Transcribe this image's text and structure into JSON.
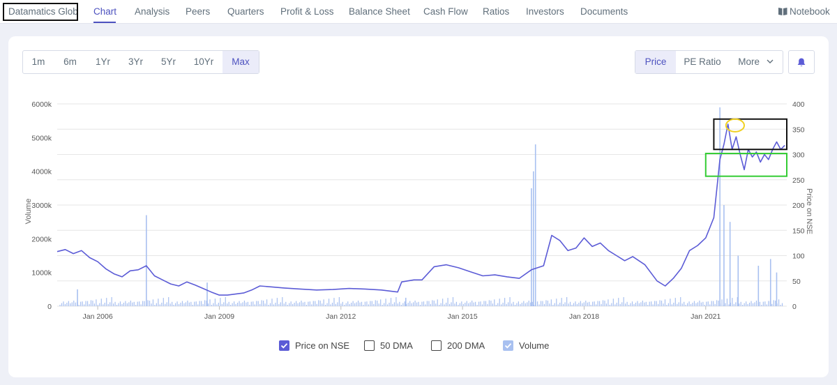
{
  "company_name": "Datamatics Glob.",
  "nav": {
    "items": [
      "Chart",
      "Analysis",
      "Peers",
      "Quarters",
      "Profit & Loss",
      "Balance Sheet",
      "Cash Flow",
      "Ratios",
      "Investors",
      "Documents"
    ],
    "active": "Chart",
    "notebook": "Notebook"
  },
  "ranges": {
    "items": [
      "1m",
      "6m",
      "1Yr",
      "3Yr",
      "5Yr",
      "10Yr",
      "Max"
    ],
    "active": "Max"
  },
  "metrics": {
    "price": "Price",
    "pe_ratio": "PE Ratio",
    "more": "More"
  },
  "icons": {
    "notebook": "book-icon",
    "more": "chevron-down-icon",
    "alert": "bell-icon"
  },
  "colors": {
    "accent": "#4c51bf",
    "price_line": "#5b5bd6",
    "volume": "#a8c0f0",
    "annotation_black": "#111111",
    "annotation_green": "#33cc33",
    "annotation_yellow": "#f0d020"
  },
  "legend": {
    "price": "Price on NSE",
    "dma50": "50 DMA",
    "dma200": "200 DMA",
    "volume": "Volume"
  },
  "chart_data": {
    "type": "line",
    "y_left": {
      "label": "Volume",
      "ticks": [
        "0",
        "1000k",
        "2000k",
        "3000k",
        "4000k",
        "5000k",
        "6000k"
      ],
      "range": [
        0,
        6000000
      ]
    },
    "y_right": {
      "label": "Price on NSE",
      "ticks": [
        "0",
        "50",
        "100",
        "150",
        "200",
        "250",
        "300",
        "350",
        "400"
      ],
      "range": [
        0,
        400
      ]
    },
    "x_ticks": [
      "Jan 2006",
      "Jan 2009",
      "Jan 2012",
      "Jan 2015",
      "Jan 2018",
      "Jan 2021"
    ],
    "x_range": [
      2005.0,
      2023.0
    ],
    "grid": true,
    "series": [
      {
        "name": "Price on NSE",
        "x": [
          2005.0,
          2005.2,
          2005.4,
          2005.6,
          2005.8,
          2006.0,
          2006.2,
          2006.4,
          2006.6,
          2006.8,
          2007.0,
          2007.2,
          2007.4,
          2007.6,
          2007.8,
          2008.0,
          2008.2,
          2008.4,
          2008.6,
          2008.8,
          2009.0,
          2009.2,
          2009.4,
          2009.6,
          2009.8,
          2010.0,
          2010.3,
          2010.6,
          2011.0,
          2011.4,
          2011.8,
          2012.2,
          2012.6,
          2013.0,
          2013.4,
          2013.5,
          2013.8,
          2014.0,
          2014.3,
          2014.6,
          2014.9,
          2015.2,
          2015.5,
          2015.8,
          2016.1,
          2016.4,
          2016.7,
          2017.0,
          2017.2,
          2017.4,
          2017.6,
          2017.8,
          2018.0,
          2018.2,
          2018.4,
          2018.6,
          2018.8,
          2019.0,
          2019.2,
          2019.5,
          2019.8,
          2020.0,
          2020.2,
          2020.4,
          2020.6,
          2020.8,
          2021.0,
          2021.2,
          2021.35,
          2021.45,
          2021.55,
          2021.65,
          2021.75,
          2021.85,
          2021.95,
          2022.05,
          2022.15,
          2022.25,
          2022.35,
          2022.45,
          2022.55,
          2022.65,
          2022.75,
          2022.85,
          2022.95
        ],
        "values": [
          108,
          112,
          104,
          110,
          96,
          88,
          74,
          64,
          58,
          70,
          72,
          80,
          60,
          52,
          44,
          40,
          48,
          42,
          35,
          28,
          22,
          22,
          24,
          26,
          32,
          40,
          38,
          36,
          34,
          32,
          33,
          35,
          34,
          32,
          28,
          48,
          52,
          52,
          78,
          82,
          76,
          68,
          60,
          62,
          58,
          55,
          72,
          80,
          140,
          130,
          110,
          115,
          135,
          118,
          125,
          110,
          100,
          90,
          98,
          82,
          50,
          40,
          55,
          75,
          110,
          120,
          135,
          175,
          290,
          320,
          360,
          310,
          335,
          300,
          270,
          310,
          295,
          305,
          285,
          300,
          290,
          310,
          325,
          310,
          318
        ]
      },
      {
        "name": "Volume",
        "x": [
          2005.5,
          2007.2,
          2008.7,
          2013.6,
          2016.7,
          2016.75,
          2016.8,
          2021.35,
          2021.45,
          2021.6,
          2021.8,
          2022.3,
          2022.6,
          2022.75
        ],
        "values": [
          500000,
          2700000,
          700000,
          250000,
          3500000,
          4000000,
          4800000,
          5900000,
          3000000,
          2500000,
          1500000,
          1200000,
          1400000,
          1000000
        ]
      }
    ],
    "annotations": [
      {
        "shape": "rectangle",
        "color": "black",
        "x_range": [
          2021.2,
          2023.0
        ],
        "y_range": [
          310,
          370
        ]
      },
      {
        "shape": "rectangle",
        "color": "green",
        "x_range": [
          2021.0,
          2023.0
        ],
        "y_range": [
          257,
          302
        ]
      },
      {
        "shape": "ellipse",
        "color": "yellow",
        "x_range": [
          2021.5,
          2021.95
        ],
        "y_range": [
          345,
          370
        ]
      }
    ]
  }
}
